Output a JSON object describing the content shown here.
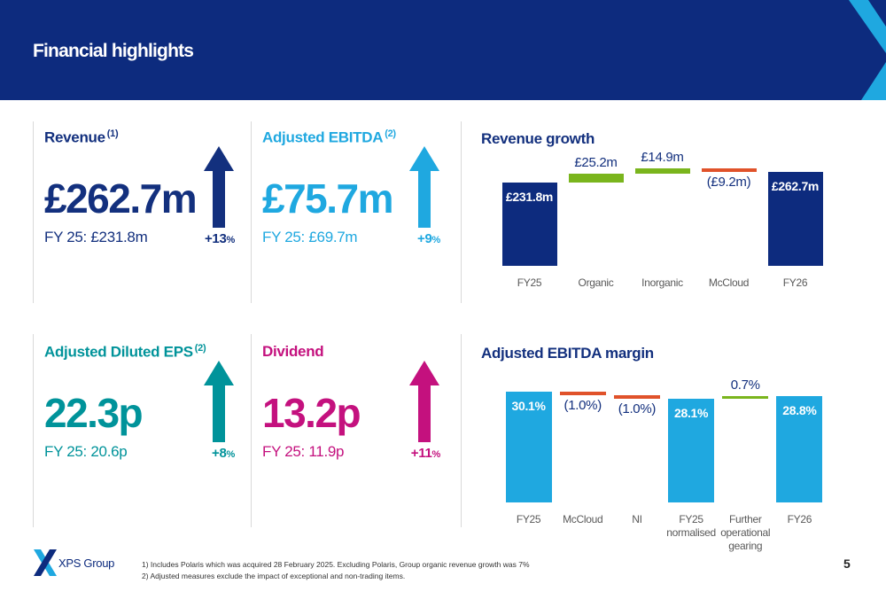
{
  "header": {
    "title": "Financial highlights"
  },
  "kpis": [
    {
      "title": "Revenue",
      "note": "(1)",
      "value": "£262.7m",
      "prior": "FY 25: £231.8m",
      "change": "+13",
      "unit": "%",
      "color": "#13307e"
    },
    {
      "title": "Adjusted EBITDA",
      "note": "(2)",
      "value": "£75.7m",
      "prior": "FY 25: £69.7m",
      "change": "+9",
      "unit": "%",
      "color": "#1fa8e0"
    },
    {
      "title": "Adjusted Diluted EPS",
      "note": "(2)",
      "value": "22.3p",
      "prior": "FY 25: 20.6p",
      "change": "+8",
      "unit": "%",
      "color": "#00939a"
    },
    {
      "title": "Dividend",
      "value": "13.2p",
      "prior": "FY 25: 11.9p",
      "change": "+11",
      "unit": "%",
      "color": "#c4117e"
    }
  ],
  "chart_data": [
    {
      "type": "waterfall",
      "title": "Revenue growth",
      "categories": [
        "FY25",
        "Organic",
        "Inorganic",
        "McCloud",
        "FY26"
      ],
      "values": [
        231.8,
        25.2,
        14.9,
        -9.2,
        262.7
      ],
      "value_labels": [
        "£231.8m",
        "£25.2m",
        "£14.9m",
        "(£9.2m)",
        "£262.7m"
      ],
      "measures": [
        "total",
        "relative",
        "relative",
        "relative",
        "total"
      ],
      "colors": [
        "#0d2b7e",
        "#7ab51d",
        "#7ab51d",
        "#e0522a",
        "#0d2b7e"
      ]
    },
    {
      "type": "waterfall",
      "title": "Adjusted EBITDA margin",
      "categories": [
        "FY25",
        "McCloud",
        "NI",
        "FY25 normalised",
        "Further operational gearing",
        "FY26"
      ],
      "values": [
        30.1,
        -1.0,
        -1.0,
        28.1,
        0.7,
        28.8
      ],
      "value_labels": [
        "30.1%",
        "(1.0%)",
        "(1.0%)",
        "28.1%",
        "0.7%",
        "28.8%"
      ],
      "measures": [
        "total",
        "relative",
        "relative",
        "total",
        "relative",
        "total"
      ],
      "colors": [
        "#1fa8e0",
        "#e0522a",
        "#e0522a",
        "#1fa8e0",
        "#7ab51d",
        "#1fa8e0"
      ]
    }
  ],
  "footer": {
    "logo": "XPS Group",
    "notes": [
      "1)  Includes Polaris which was acquired 28 February 2025. Excluding Polaris, Group organic revenue growth was 7%",
      "2)  Adjusted measures exclude the impact of exceptional and non-trading items."
    ],
    "page": "5"
  }
}
